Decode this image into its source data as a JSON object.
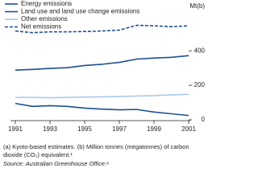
{
  "chart_data": {
    "type": "line",
    "y_label": "Mt(b)",
    "x": [
      1991,
      1992,
      1993,
      1994,
      1995,
      1996,
      1997,
      1998,
      1999,
      2000,
      2001
    ],
    "xlim": [
      1991,
      2001
    ],
    "xticks": [
      1991,
      1993,
      1995,
      1997,
      1999,
      2001
    ],
    "ylim": [
      0,
      620
    ],
    "yticks": [
      0,
      200,
      400
    ],
    "grid": false,
    "series": [
      {
        "name": "Energy emissions",
        "color": "#1d4f91",
        "dash": false,
        "values": [
          288,
          292,
          298,
          302,
          315,
          322,
          333,
          352,
          358,
          362,
          372
        ]
      },
      {
        "name": "Land use and land use change emissions",
        "color": "#1d4f91",
        "dash": false,
        "values": [
          95,
          78,
          82,
          78,
          68,
          62,
          58,
          60,
          45,
          35,
          25
        ]
      },
      {
        "name": "Other emissions",
        "color": "#a9c9ea",
        "dash": false,
        "values": [
          130,
          130,
          128,
          130,
          132,
          133,
          135,
          138,
          140,
          145,
          148
        ]
      },
      {
        "name": "Net emissions",
        "color": "#1d4f91",
        "dash": true,
        "values": [
          515,
          505,
          510,
          510,
          512,
          515,
          520,
          548,
          545,
          540,
          545
        ]
      }
    ],
    "footnote": "(a) Kyoto-based estimates. (b) Million tonnes (megatonnes) of carbon dioxide (CO₂) equivalent.¹",
    "source": "Source: Australian Greenhouse Office.⁶"
  }
}
